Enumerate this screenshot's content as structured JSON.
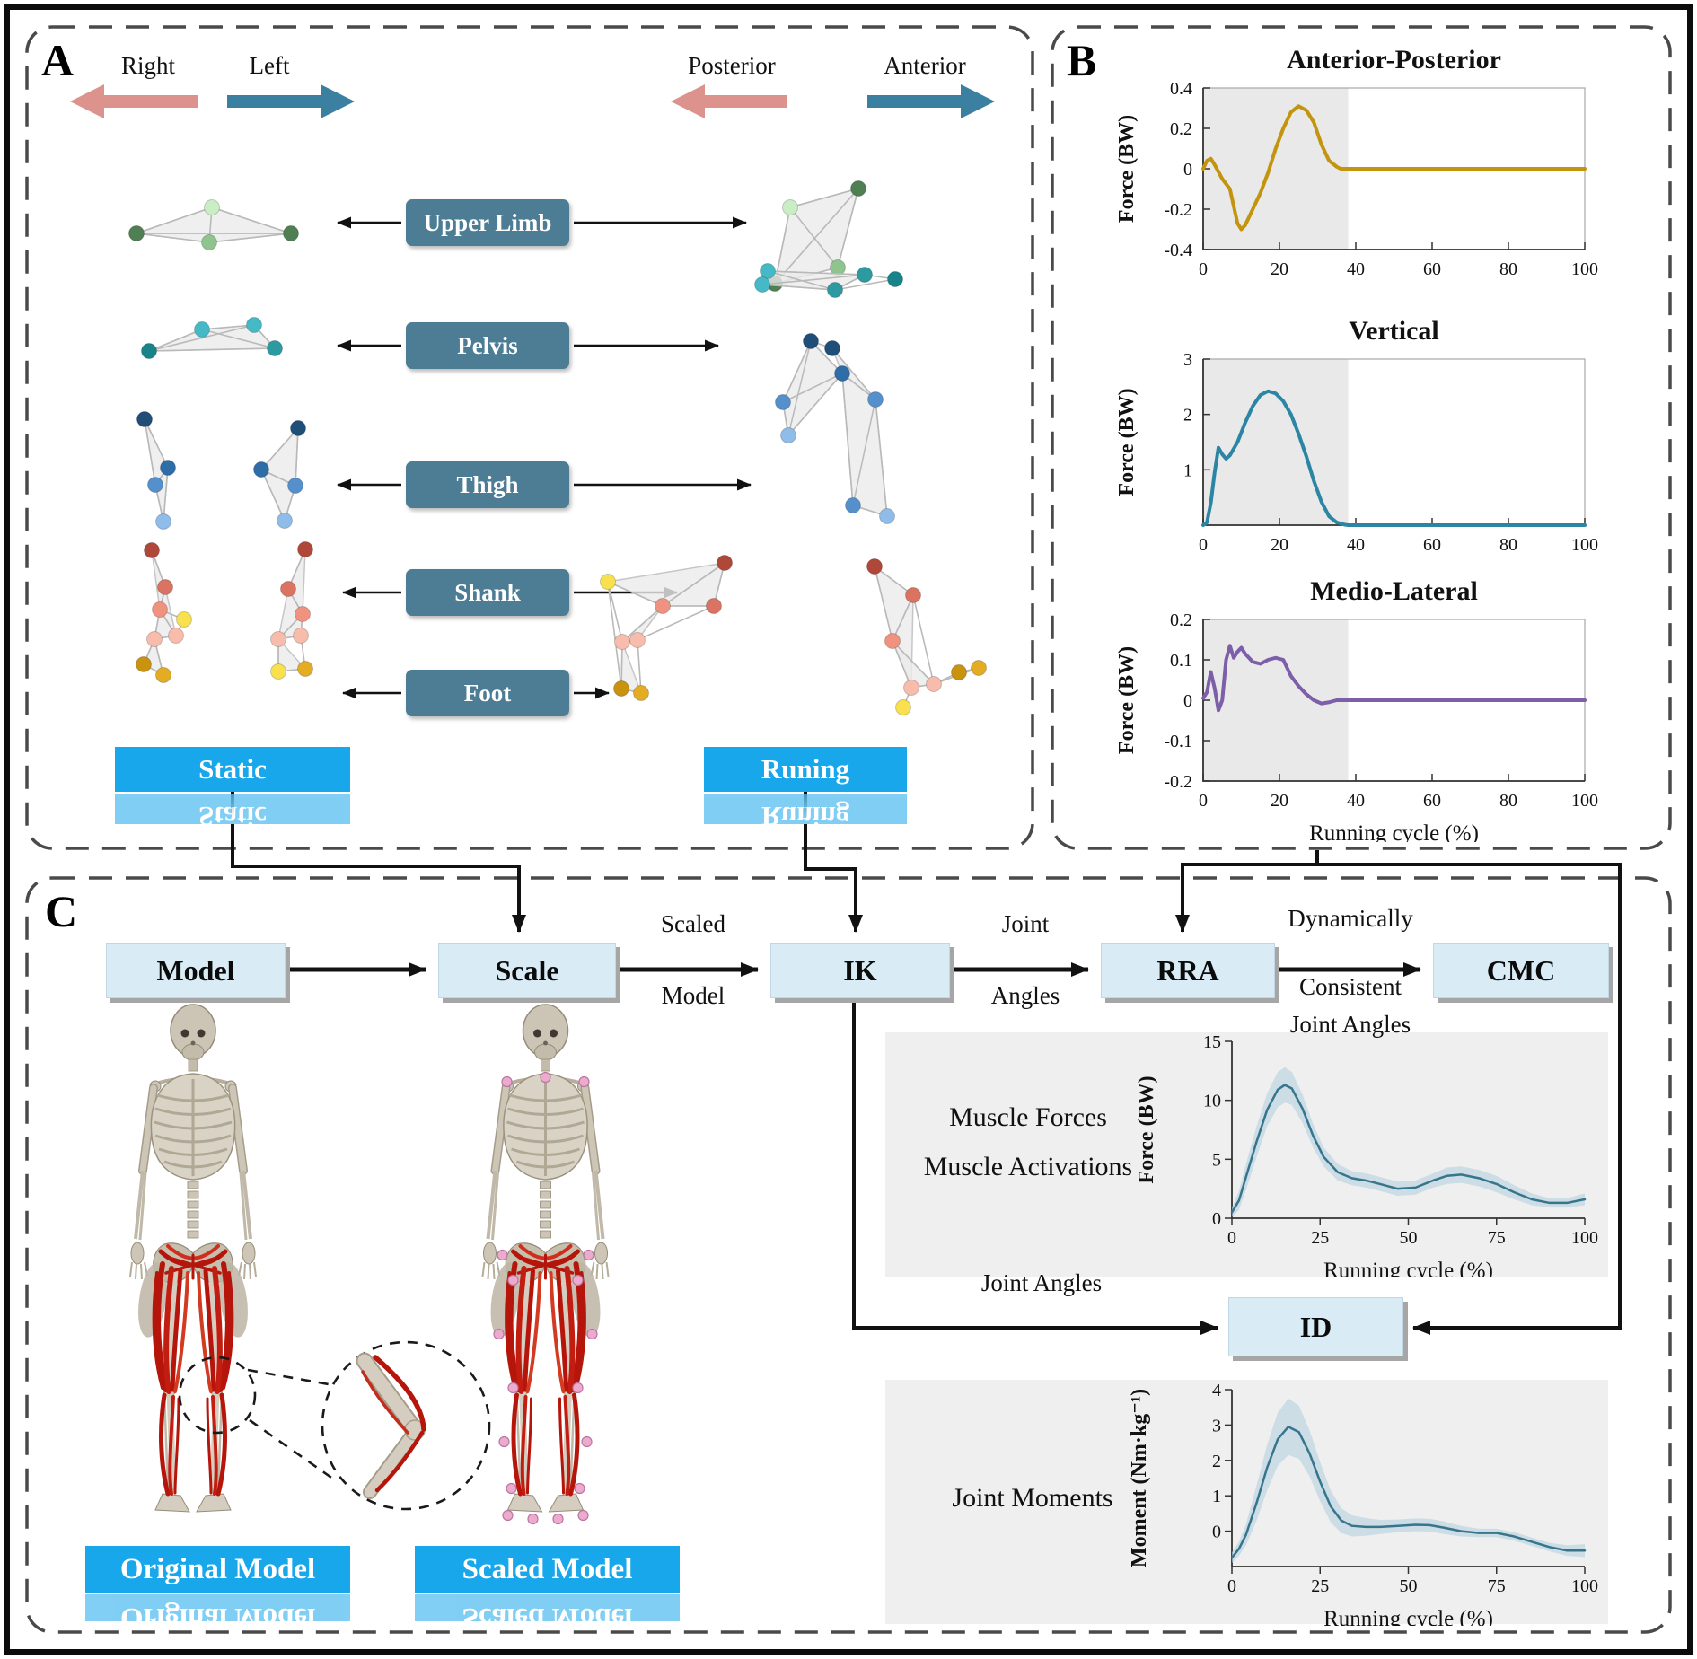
{
  "panel_a": {
    "label": "A",
    "legend": {
      "right": "Right",
      "left": "Left",
      "posterior": "Posterior",
      "anterior": "Anterior"
    },
    "segments": [
      "Upper Limb",
      "Pelvis",
      "Thigh",
      "Shank",
      "Foot"
    ],
    "static_banner": "Static",
    "running_banner": "Runing"
  },
  "panel_b": {
    "label": "B"
  },
  "panel_c": {
    "label": "C",
    "flow": [
      "Model",
      "Scale",
      "IK",
      "RRA",
      "CMC"
    ],
    "id_box": "ID",
    "scaled_model": [
      "Scaled",
      "Model"
    ],
    "joint_angles": [
      "Joint",
      "Angles"
    ],
    "dynamically": [
      "Dynamically",
      "Consistent",
      "Joint Angles"
    ],
    "id_input_label": "Joint Angles",
    "muscle_labels": [
      "Muscle Forces",
      "Muscle Activations"
    ],
    "moments_label": "Joint Moments",
    "original_banner": "Original Model",
    "scaled_banner": "Scaled Model"
  },
  "colors": {
    "banner": "#19A7EC",
    "segment_box": "#4C7D95",
    "flow_box": "#D9EBF5",
    "stance": "#E9E9E9",
    "band": "#B9D3E1",
    "ap": "#C3940E",
    "vertical": "#2C86A3",
    "ml": "#7C5FA8",
    "mean_line": "#37758D"
  },
  "chart_data": [
    {
      "id": "ap",
      "type": "line",
      "title": "Anterior-Posterior",
      "ylabel": "Force (BW)",
      "xlabel": "",
      "xlim": [
        0,
        100
      ],
      "ylim": [
        -0.4,
        0.4
      ],
      "xticks": [
        "0",
        "20",
        "40",
        "60",
        "80",
        "100"
      ],
      "yticks": [
        "-0.4",
        "-0.2",
        "0",
        "0.2",
        "0.4"
      ],
      "color": "#C3940E",
      "line_width": 4,
      "frame": true,
      "stance_end": 38,
      "x": [
        0,
        1,
        2,
        3,
        5,
        7,
        9,
        10,
        11,
        13,
        15,
        17,
        19,
        21,
        23,
        25,
        27,
        29,
        31,
        33,
        35,
        36,
        38,
        45,
        60,
        80,
        100
      ],
      "y": [
        0,
        0.04,
        0.05,
        0.02,
        -0.05,
        -0.1,
        -0.27,
        -0.3,
        -0.28,
        -0.2,
        -0.12,
        -0.02,
        0.1,
        0.2,
        0.28,
        0.31,
        0.29,
        0.23,
        0.12,
        0.04,
        0.01,
        0,
        0,
        0,
        0,
        0,
        0
      ]
    },
    {
      "id": "vertical",
      "type": "line",
      "title": "Vertical",
      "ylabel": "Force (BW)",
      "xlabel": "",
      "xlim": [
        0,
        100
      ],
      "ylim": [
        0,
        3
      ],
      "xticks": [
        "0",
        "20",
        "40",
        "60",
        "80",
        "100"
      ],
      "yticks": [
        "1",
        "2",
        "3"
      ],
      "color": "#2C86A3",
      "line_width": 4,
      "frame": true,
      "stance_end": 38,
      "x": [
        0,
        1,
        2,
        3,
        4,
        5,
        6,
        7,
        9,
        11,
        13,
        15,
        17,
        19,
        21,
        23,
        25,
        27,
        29,
        31,
        33,
        35,
        37,
        38,
        45,
        60,
        80,
        100
      ],
      "y": [
        0,
        0.05,
        0.4,
        0.95,
        1.4,
        1.28,
        1.2,
        1.26,
        1.5,
        1.85,
        2.15,
        2.35,
        2.42,
        2.38,
        2.24,
        2.0,
        1.65,
        1.25,
        0.8,
        0.42,
        0.16,
        0.05,
        0.01,
        0,
        0,
        0,
        0,
        0
      ]
    },
    {
      "id": "ml",
      "type": "line",
      "title": "Medio-Lateral",
      "ylabel": "Force (BW)",
      "xlabel": "Running cycle (%)",
      "xlim": [
        0,
        100
      ],
      "ylim": [
        -0.2,
        0.2
      ],
      "xticks": [
        "0",
        "20",
        "40",
        "60",
        "80",
        "100"
      ],
      "yticks": [
        "-0.2",
        "-0.1",
        "0",
        "0.1",
        "0.2"
      ],
      "color": "#7C5FA8",
      "line_width": 4,
      "frame": true,
      "stance_end": 38,
      "x": [
        0,
        1,
        2,
        3,
        4,
        5,
        6,
        7,
        8,
        9,
        10,
        11,
        13,
        15,
        17,
        19,
        21,
        23,
        25,
        27,
        29,
        31,
        33,
        35,
        38,
        45,
        60,
        80,
        100
      ],
      "y": [
        0.005,
        0.02,
        0.07,
        0.03,
        -0.025,
        0,
        0.1,
        0.135,
        0.105,
        0.12,
        0.13,
        0.115,
        0.095,
        0.09,
        0.1,
        0.105,
        0.1,
        0.06,
        0.035,
        0.015,
        0,
        -0.008,
        -0.005,
        0,
        0,
        0,
        0,
        0,
        0
      ]
    },
    {
      "id": "muscle",
      "type": "line",
      "title": "",
      "ylabel": "Force (BW)",
      "xlabel": "Running cycle (%)",
      "xlim": [
        0,
        100
      ],
      "ylim": [
        0,
        15
      ],
      "xticks": [
        "0",
        "25",
        "50",
        "75",
        "100"
      ],
      "yticks": [
        "0",
        "5",
        "10",
        "15"
      ],
      "color": "#37758D",
      "line_width": 2.5,
      "frame": false,
      "stance_end": null,
      "x": [
        0,
        2,
        4,
        7,
        10,
        13,
        15,
        17,
        20,
        23,
        26,
        30,
        34,
        38,
        42,
        47,
        52,
        57,
        61,
        65,
        70,
        75,
        80,
        85,
        90,
        95,
        100
      ],
      "y": [
        0.5,
        1.5,
        3.5,
        6.5,
        9.2,
        10.9,
        11.3,
        11,
        9.3,
        7,
        5.2,
        3.9,
        3.4,
        3.2,
        2.9,
        2.5,
        2.6,
        3.2,
        3.6,
        3.7,
        3.4,
        2.9,
        2.2,
        1.6,
        1.3,
        1.3,
        1.6
      ],
      "band": [
        0.4,
        0.8,
        1.1,
        1.3,
        1.4,
        1.5,
        1.5,
        1.4,
        1.2,
        1,
        0.8,
        0.7,
        0.6,
        0.6,
        0.6,
        0.6,
        0.6,
        0.6,
        0.7,
        0.7,
        0.7,
        0.7,
        0.6,
        0.5,
        0.4,
        0.4,
        0.5
      ]
    },
    {
      "id": "moment",
      "type": "line",
      "title": "",
      "ylabel": "Moment (Nm·kg⁻¹)",
      "xlabel": "Running cycle (%)",
      "xlim": [
        0,
        100
      ],
      "ylim": [
        -1,
        4
      ],
      "xticks": [
        "0",
        "25",
        "50",
        "75",
        "100"
      ],
      "yticks": [
        "0",
        "1",
        "2",
        "3",
        "4"
      ],
      "color": "#37758D",
      "line_width": 2.5,
      "frame": false,
      "stance_end": null,
      "x": [
        0,
        2,
        4,
        7,
        10,
        13,
        16,
        19,
        22,
        25,
        28,
        31,
        34,
        38,
        42,
        47,
        52,
        56,
        60,
        65,
        70,
        75,
        80,
        85,
        90,
        95,
        100
      ],
      "y": [
        -0.75,
        -0.5,
        -0.1,
        0.8,
        1.8,
        2.6,
        2.95,
        2.8,
        2.2,
        1.4,
        0.7,
        0.3,
        0.15,
        0.12,
        0.12,
        0.15,
        0.18,
        0.17,
        0.1,
        0,
        -0.05,
        -0.05,
        -0.15,
        -0.3,
        -0.45,
        -0.55,
        -0.55
      ],
      "band": [
        0.15,
        0.2,
        0.3,
        0.5,
        0.65,
        0.75,
        0.8,
        0.75,
        0.65,
        0.55,
        0.45,
        0.35,
        0.3,
        0.25,
        0.2,
        0.18,
        0.18,
        0.18,
        0.18,
        0.15,
        0.12,
        0.12,
        0.12,
        0.12,
        0.12,
        0.15,
        0.18
      ]
    }
  ]
}
